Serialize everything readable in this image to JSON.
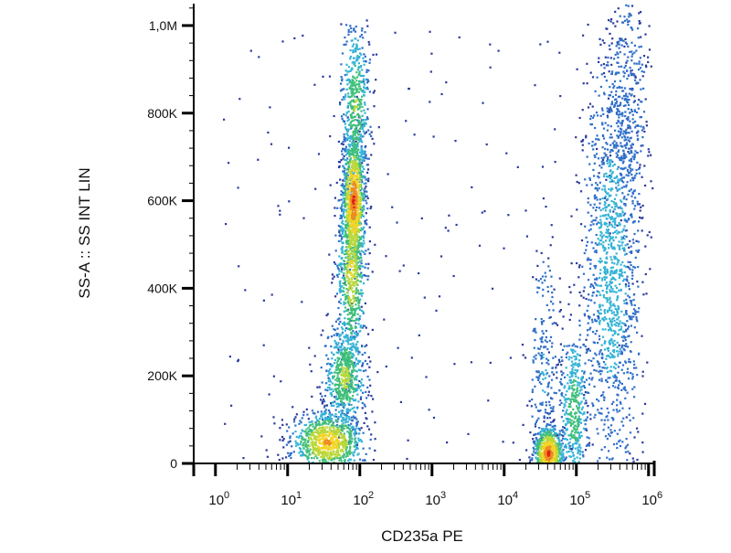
{
  "chart_data": {
    "type": "scatter",
    "subtype": "flow-cytometry-density-dot-plot",
    "xlabel": "CD235a PE",
    "ylabel": "SS-A :: SS INT LIN",
    "x_scale": "log",
    "x_range": [
      0.5,
      1200000
    ],
    "y_scale": "linear",
    "y_range": [
      0,
      1050000
    ],
    "x_ticks": [
      {
        "value": 1,
        "base": "10",
        "exp": "0"
      },
      {
        "value": 10,
        "base": "10",
        "exp": "1"
      },
      {
        "value": 100,
        "base": "10",
        "exp": "2"
      },
      {
        "value": 1000,
        "base": "10",
        "exp": "3"
      },
      {
        "value": 10000,
        "base": "10",
        "exp": "4"
      },
      {
        "value": 100000,
        "base": "10",
        "exp": "5"
      },
      {
        "value": 1000000,
        "base": "10",
        "exp": "6"
      }
    ],
    "y_ticks": [
      {
        "value": 0,
        "label": "0"
      },
      {
        "value": 200000,
        "label": "200K"
      },
      {
        "value": 400000,
        "label": "400K"
      },
      {
        "value": 600000,
        "label": "600K"
      },
      {
        "value": 800000,
        "label": "800K"
      },
      {
        "value": 1000000,
        "label": "1,0M"
      }
    ],
    "density_colors": [
      "#2b3a9c",
      "#2f6fc9",
      "#35b3d6",
      "#3fbf7a",
      "#b9d83a",
      "#f2d526",
      "#f08a1e",
      "#e0201b"
    ],
    "populations": [
      {
        "cx": 80,
        "cy": 600000,
        "sx_log10": 0.08,
        "sy": 80000,
        "n": 900,
        "intensity": 1.0
      },
      {
        "cx": 75,
        "cy": 450000,
        "sx_log10": 0.1,
        "sy": 120000,
        "n": 700,
        "intensity": 0.7
      },
      {
        "cx": 85,
        "cy": 820000,
        "sx_log10": 0.1,
        "sy": 100000,
        "n": 500,
        "intensity": 0.55
      },
      {
        "cx": 60,
        "cy": 200000,
        "sx_log10": 0.15,
        "sy": 60000,
        "n": 600,
        "intensity": 0.6
      },
      {
        "cx": 35,
        "cy": 50000,
        "sx_log10": 0.25,
        "sy": 35000,
        "n": 900,
        "intensity": 0.85
      },
      {
        "cx": 40000,
        "cy": 25000,
        "sx_log10": 0.1,
        "sy": 30000,
        "n": 700,
        "intensity": 1.0
      },
      {
        "cx": 35000,
        "cy": 200000,
        "sx_log10": 0.1,
        "sy": 150000,
        "n": 250,
        "intensity": 0.25
      },
      {
        "cx": 90000,
        "cy": 120000,
        "sx_log10": 0.1,
        "sy": 100000,
        "n": 450,
        "intensity": 0.5
      },
      {
        "cx": 300000,
        "cy": 450000,
        "sx_log10": 0.2,
        "sy": 250000,
        "n": 1300,
        "intensity": 0.35
      },
      {
        "cx": 500000,
        "cy": 800000,
        "sx_log10": 0.15,
        "sy": 150000,
        "n": 400,
        "intensity": 0.2
      }
    ],
    "sparse_points": 180
  }
}
